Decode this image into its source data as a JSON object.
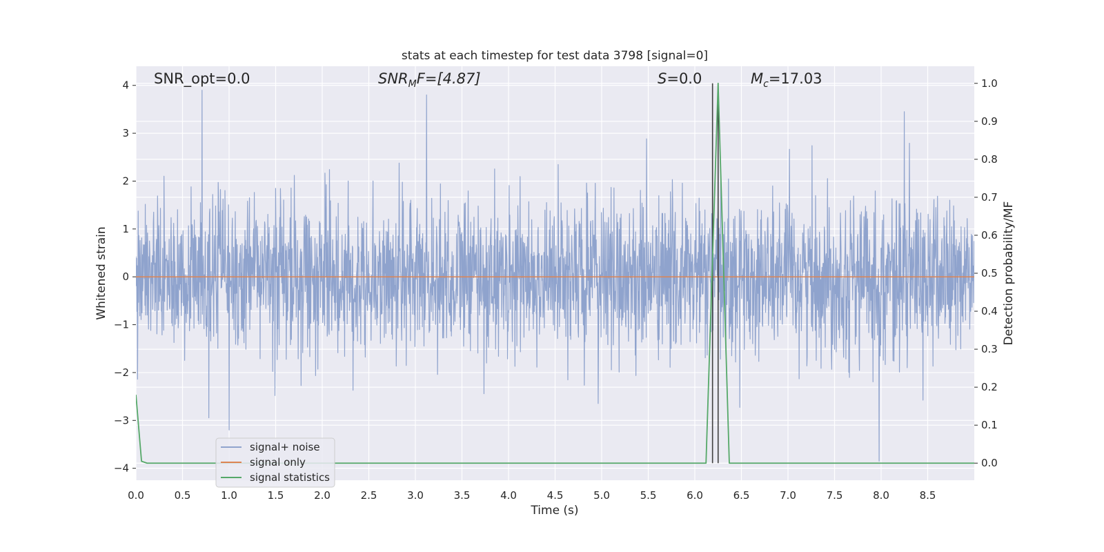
{
  "chart_data": {
    "type": "line",
    "title": "stats at each timestep for test data 3798 [signal=0]",
    "xlabel": "Time (s)",
    "ylabel": "Whitened strain",
    "y2label": "Detection probability/MF",
    "xlim": [
      0.0,
      9.0
    ],
    "ylim": [
      -4.25,
      4.4
    ],
    "y2lim": [
      -0.045,
      1.045
    ],
    "xticks": [
      "0.0",
      "0.5",
      "1.0",
      "1.5",
      "2.0",
      "2.5",
      "3.0",
      "3.5",
      "4.0",
      "4.5",
      "5.0",
      "5.5",
      "6.0",
      "6.5",
      "7.0",
      "7.5",
      "8.0",
      "8.5"
    ],
    "yticks": [
      "4",
      "3",
      "2",
      "1",
      "0",
      "−1",
      "−2",
      "−3",
      "−4"
    ],
    "y2ticks": [
      "1.0",
      "0.9",
      "0.8",
      "0.7",
      "0.6",
      "0.5",
      "0.4",
      "0.3",
      "0.2",
      "0.1",
      "0.0"
    ],
    "grid": true,
    "legend_position": "lower-left",
    "annotations": {
      "snr_opt": "SNR_opt=0.0",
      "snr_mf_base": "SNR",
      "snr_mf_sub": "M",
      "snr_mf_rest": "F=[4.87]",
      "s_var": "S",
      "s_rest": "=0.0",
      "mc_var": "M",
      "mc_sub": "c",
      "mc_rest": "=17.03"
    },
    "vlines_x": [
      6.19,
      6.25
    ],
    "series": [
      {
        "name": "signal+ noise",
        "color": "#8fa3cd",
        "description_values": "whitened noise, approx gaussian, std about 0.8, range about -4 to 4, sampled over 0 to 9 s",
        "peaks": [
          [
            0.71,
            3.9
          ],
          [
            3.12,
            3.8
          ],
          [
            7.98,
            -3.85
          ],
          [
            1.0,
            -3.2
          ],
          [
            8.25,
            3.45
          ]
        ]
      },
      {
        "name": "signal only",
        "color": "#dd8452",
        "x": [
          0.0,
          9.0
        ],
        "y": [
          0.0,
          0.0
        ]
      },
      {
        "name": "signal statistics",
        "color": "#55a868",
        "axis": "right",
        "x": [
          0.0,
          0.06,
          0.12,
          0.25,
          6.12,
          6.25,
          6.37,
          9.0
        ],
        "y": [
          0.18,
          0.005,
          0.0,
          0.0,
          0.0,
          1.0,
          0.0,
          0.0
        ]
      }
    ]
  }
}
